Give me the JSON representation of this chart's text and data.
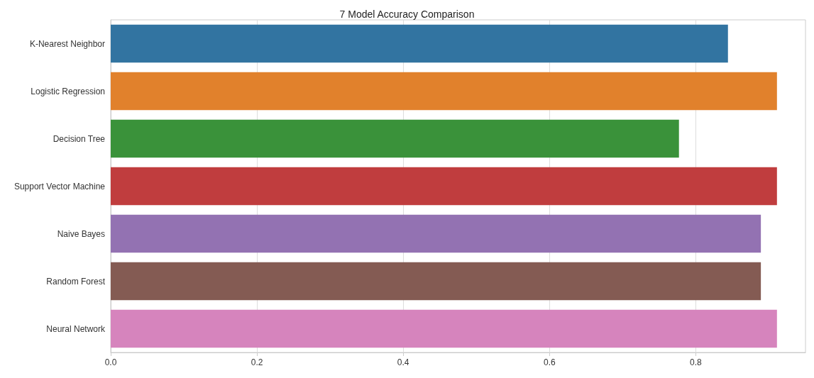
{
  "chart_data": {
    "type": "bar",
    "orientation": "horizontal",
    "title": "7 Model Accuracy Comparison",
    "categories": [
      "K-Nearest Neighbor",
      "Logistic Regression",
      "Decision Tree",
      "Support Vector Machine",
      "Naive Bayes",
      "Random Forest",
      "Neural Network"
    ],
    "values": [
      0.844,
      0.911,
      0.777,
      0.911,
      0.889,
      0.889,
      0.911
    ],
    "colors": [
      "#3274a1",
      "#e1812c",
      "#3a923a",
      "#c03d3e",
      "#9372b2",
      "#845b53",
      "#d684bd"
    ],
    "xlim": [
      0,
      0.95
    ],
    "xticks": [
      {
        "value": 0,
        "label": "0.0"
      },
      {
        "value": 0.2,
        "label": "0.2"
      },
      {
        "value": 0.4,
        "label": "0.4"
      },
      {
        "value": 0.6,
        "label": "0.6"
      },
      {
        "value": 0.8,
        "label": "0.8"
      }
    ],
    "grid": "x"
  }
}
